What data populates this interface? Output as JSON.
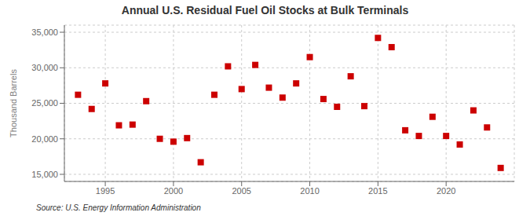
{
  "chart_data": {
    "type": "scatter",
    "title": "Annual U.S. Residual Fuel Oil Stocks at Bulk Terminals",
    "y_label": "Thousand Barrels",
    "annotations": [
      "Source: U.S. Energy Information Administration"
    ],
    "color": "#cc0000",
    "marker": "square",
    "grid": true,
    "xlim": [
      1992,
      2025
    ],
    "xticks": [
      1995,
      2000,
      2005,
      2010,
      2015,
      2020
    ],
    "ylim": [
      14000,
      36000
    ],
    "yticks": [
      {
        "value": 15000,
        "label": "15,000"
      },
      {
        "value": 20000,
        "label": "20,000"
      },
      {
        "value": 25000,
        "label": "25,000"
      },
      {
        "value": 30000,
        "label": "30,000"
      },
      {
        "value": 35000,
        "label": "35,000"
      }
    ],
    "x": [
      1993,
      1994,
      1995,
      1996,
      1997,
      1998,
      1999,
      2000,
      2001,
      2002,
      2003,
      2004,
      2005,
      2006,
      2007,
      2008,
      2009,
      2010,
      2011,
      2012,
      2013,
      2014,
      2015,
      2016,
      2017,
      2018,
      2019,
      2020,
      2021,
      2022,
      2023,
      2024
    ],
    "values": [
      26200,
      24200,
      27800,
      21900,
      22000,
      25300,
      20000,
      19600,
      20100,
      16700,
      26200,
      30200,
      27000,
      30400,
      27200,
      25800,
      27800,
      31500,
      25600,
      24500,
      28800,
      24600,
      34200,
      32900,
      21200,
      20400,
      23100,
      20400,
      19200,
      24000,
      21600,
      15900
    ]
  }
}
